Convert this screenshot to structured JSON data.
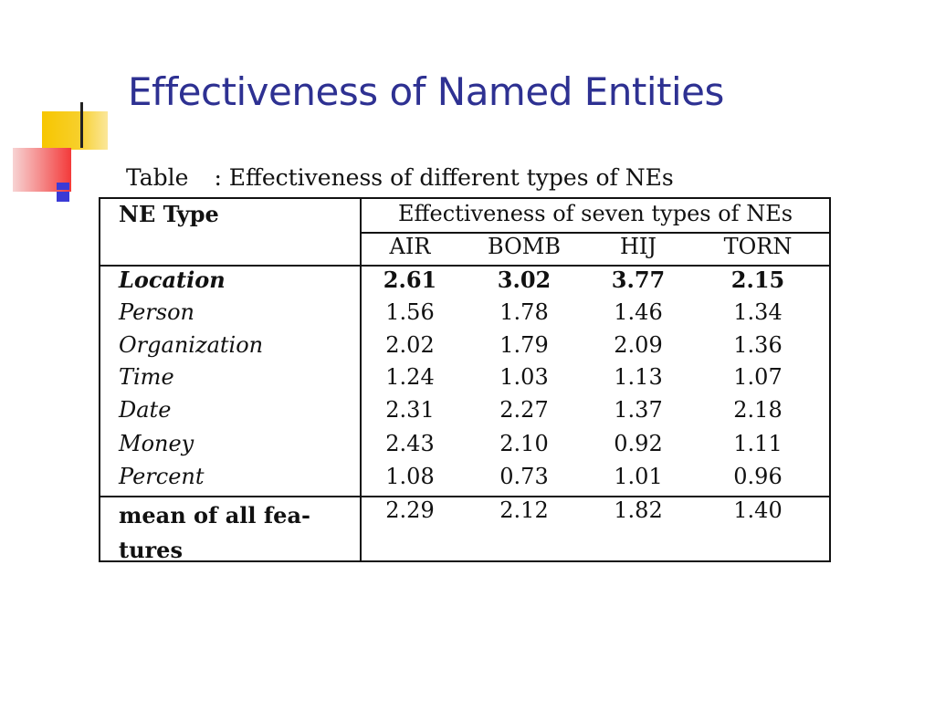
{
  "slide": {
    "title": "Effectiveness of Named Entities"
  },
  "table": {
    "caption_prefix": "Table",
    "caption_text": ": Effectiveness of different types of NEs",
    "header_type": "NE Type",
    "header_group": "Effectiveness of seven types of NEs",
    "columns": [
      "AIR",
      "BOMB",
      "HIJ",
      "TORN"
    ],
    "rows": [
      {
        "label": "Location",
        "values": [
          "2.61",
          "3.02",
          "3.77",
          "2.15"
        ]
      },
      {
        "label": "Person",
        "values": [
          "1.56",
          "1.78",
          "1.46",
          "1.34"
        ]
      },
      {
        "label": "Organization",
        "values": [
          "2.02",
          "1.79",
          "2.09",
          "1.36"
        ]
      },
      {
        "label": "Time",
        "values": [
          "1.24",
          "1.03",
          "1.13",
          "1.07"
        ]
      },
      {
        "label": "Date",
        "values": [
          "2.31",
          "2.27",
          "1.37",
          "2.18"
        ]
      },
      {
        "label": "Money",
        "values": [
          "2.43",
          "2.10",
          "0.92",
          "1.11"
        ]
      },
      {
        "label": "Percent",
        "values": [
          "1.08",
          "0.73",
          "1.01",
          "0.96"
        ]
      }
    ],
    "mean_row": {
      "label_line1": "mean of all fea-",
      "label_line2": "tures",
      "values": [
        "2.29",
        "2.12",
        "1.82",
        "1.40"
      ]
    }
  },
  "colors": {
    "title": "#2e3192",
    "deco_yellow": "#f7c600",
    "deco_red": "#f33a3a",
    "deco_blue": "#3a3ad6"
  }
}
